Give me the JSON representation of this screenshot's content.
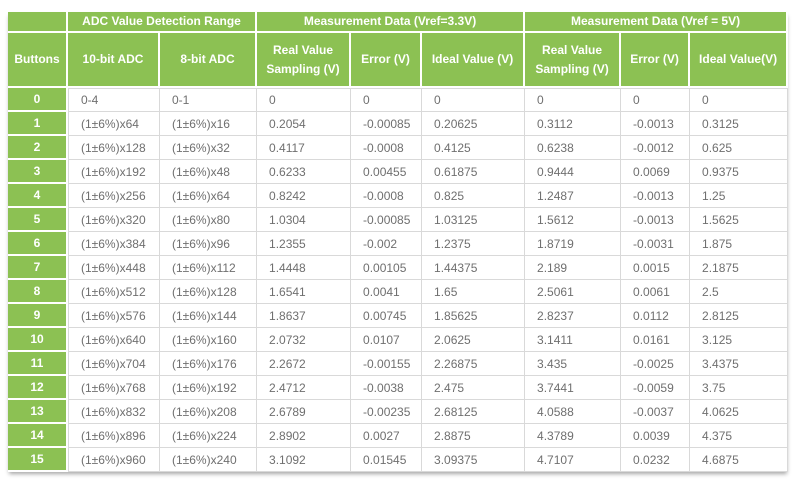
{
  "colors": {
    "accent_green": "#8cc153",
    "cell_border": "#d9d9d9",
    "data_text": "#6f6f6f",
    "header_text": "#ffffff",
    "page_background": "#ffffff"
  },
  "table": {
    "group_headers": [
      {
        "label": "",
        "colspan": 1
      },
      {
        "label": "ADC Value Detection Range",
        "colspan": 2
      },
      {
        "label": "Measurement Data (Vref=3.3V)",
        "colspan": 3
      },
      {
        "label": "Measurement Data (Vref = 5V)",
        "colspan": 3
      }
    ],
    "column_headers": [
      "Buttons",
      "10-bit ADC",
      "8-bit ADC",
      "Real Value Sampling (V)",
      "Error (V)",
      "Ideal Value (V)",
      "Real Value Sampling (V)",
      "Error (V)",
      "Ideal Value(V)"
    ],
    "rows": [
      [
        "0",
        "0-4",
        "0-1",
        "0",
        "0",
        "0",
        "0",
        "0",
        "0"
      ],
      [
        "1",
        "(1±6%)x64",
        "(1±6%)x16",
        "0.2054",
        "-0.00085",
        "0.20625",
        "0.3112",
        "-0.0013",
        "0.3125"
      ],
      [
        "2",
        "(1±6%)x128",
        "(1±6%)x32",
        "0.4117",
        "-0.0008",
        "0.4125",
        "0.6238",
        "-0.0012",
        "0.625"
      ],
      [
        "3",
        "(1±6%)x192",
        "(1±6%)x48",
        "0.6233",
        "0.00455",
        "0.61875",
        "0.9444",
        "0.0069",
        "0.9375"
      ],
      [
        "4",
        "(1±6%)x256",
        "(1±6%)x64",
        "0.8242",
        "-0.0008",
        "0.825",
        "1.2487",
        "-0.0013",
        "1.25"
      ],
      [
        "5",
        "(1±6%)x320",
        "(1±6%)x80",
        "1.0304",
        "-0.00085",
        "1.03125",
        "1.5612",
        "-0.0013",
        "1.5625"
      ],
      [
        "6",
        "(1±6%)x384",
        "(1±6%)x96",
        "1.2355",
        "-0.002",
        "1.2375",
        "1.8719",
        "-0.0031",
        "1.875"
      ],
      [
        "7",
        "(1±6%)x448",
        "(1±6%)x112",
        "1.4448",
        "0.00105",
        "1.44375",
        "2.189",
        "0.0015",
        "2.1875"
      ],
      [
        "8",
        "(1±6%)x512",
        "(1±6%)x128",
        "1.6541",
        "0.0041",
        "1.65",
        "2.5061",
        "0.0061",
        "2.5"
      ],
      [
        "9",
        "(1±6%)x576",
        "(1±6%)x144",
        "1.8637",
        "0.00745",
        "1.85625",
        "2.8237",
        "0.0112",
        "2.8125"
      ],
      [
        "10",
        "(1±6%)x640",
        "(1±6%)x160",
        "2.0732",
        "0.0107",
        "2.0625",
        "3.1411",
        "0.0161",
        "3.125"
      ],
      [
        "11",
        "(1±6%)x704",
        "(1±6%)x176",
        "2.2672",
        "-0.00155",
        "2.26875",
        "3.435",
        "-0.0025",
        "3.4375"
      ],
      [
        "12",
        "(1±6%)x768",
        "(1±6%)x192",
        "2.4712",
        "-0.0038",
        "2.475",
        "3.7441",
        "-0.0059",
        "3.75"
      ],
      [
        "13",
        "(1±6%)x832",
        "(1±6%)x208",
        "2.6789",
        "-0.00235",
        "2.68125",
        "4.0588",
        "-0.0037",
        "4.0625"
      ],
      [
        "14",
        "(1±6%)x896",
        "(1±6%)x224",
        "2.8902",
        "0.0027",
        "2.8875",
        "4.3789",
        "0.0039",
        "4.375"
      ],
      [
        "15",
        "(1±6%)x960",
        "(1±6%)x240",
        "3.1092",
        "0.01545",
        "3.09375",
        "4.7107",
        "0.0232",
        "4.6875"
      ]
    ]
  }
}
